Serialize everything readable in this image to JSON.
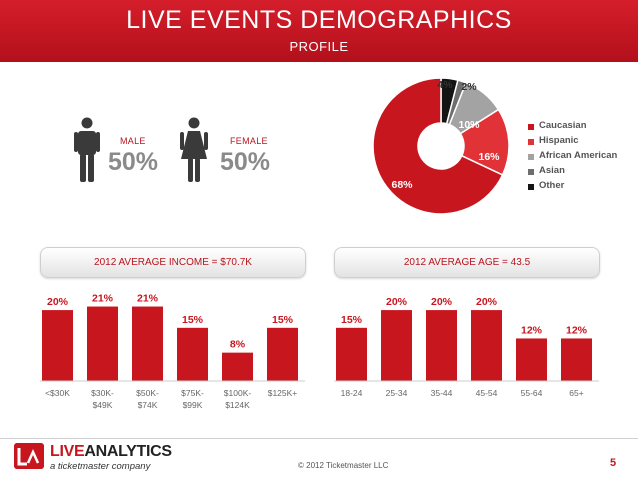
{
  "header": {
    "title": "LIVE EVENTS DEMOGRAPHICS",
    "subtitle": "PROFILE"
  },
  "gender": {
    "male": {
      "label": "MALE",
      "value": "50%"
    },
    "female": {
      "label": "FEMALE",
      "value": "50%"
    }
  },
  "income_band": "2012 AVERAGE INCOME = $70.7K",
  "age_band": "2012 AVERAGE AGE = 43.5",
  "footer": {
    "logo_live": "LIVE",
    "logo_analytics": "ANALYTICS",
    "tagline": "a ticketmaster company",
    "copyright": "© 2012 Ticketmaster LLC",
    "page": "5"
  },
  "colors": {
    "brand_red": "#c8161f",
    "header_red": "#c41723"
  },
  "icons": [
    "male-person-icon",
    "female-person-icon",
    "liveanalytics-logo-icon"
  ],
  "chart_data": [
    {
      "type": "pie",
      "donut": true,
      "categories": [
        "Caucasian",
        "Hispanic",
        "African American",
        "Asian",
        "Other"
      ],
      "values": [
        68,
        16,
        10,
        2,
        4
      ],
      "labels": [
        "68%",
        "16%",
        "10%",
        "2%",
        "4%"
      ],
      "colors": [
        "#c8161f",
        "#e03237",
        "#a3a3a3",
        "#6e6e6e",
        "#141414"
      ],
      "legend": "right"
    },
    {
      "type": "bar",
      "categories": [
        "<$30K",
        "$30K-\n$49K",
        "$50K-\n$74K",
        "$75K-\n$99K",
        "$100K-\n$124K",
        "$125K+"
      ],
      "values": [
        20,
        21,
        21,
        15,
        8,
        15
      ],
      "labels": [
        "20%",
        "21%",
        "21%",
        "15%",
        "8%",
        "15%"
      ],
      "ylim": [
        0,
        22
      ],
      "color": "#c8161f"
    },
    {
      "type": "bar",
      "categories": [
        "18-24",
        "25-34",
        "35-44",
        "45-54",
        "55-64",
        "65+"
      ],
      "values": [
        15,
        20,
        20,
        20,
        12,
        12
      ],
      "labels": [
        "15%",
        "20%",
        "20%",
        "20%",
        "12%",
        "12%"
      ],
      "ylim": [
        0,
        22
      ],
      "color": "#c8161f"
    }
  ]
}
